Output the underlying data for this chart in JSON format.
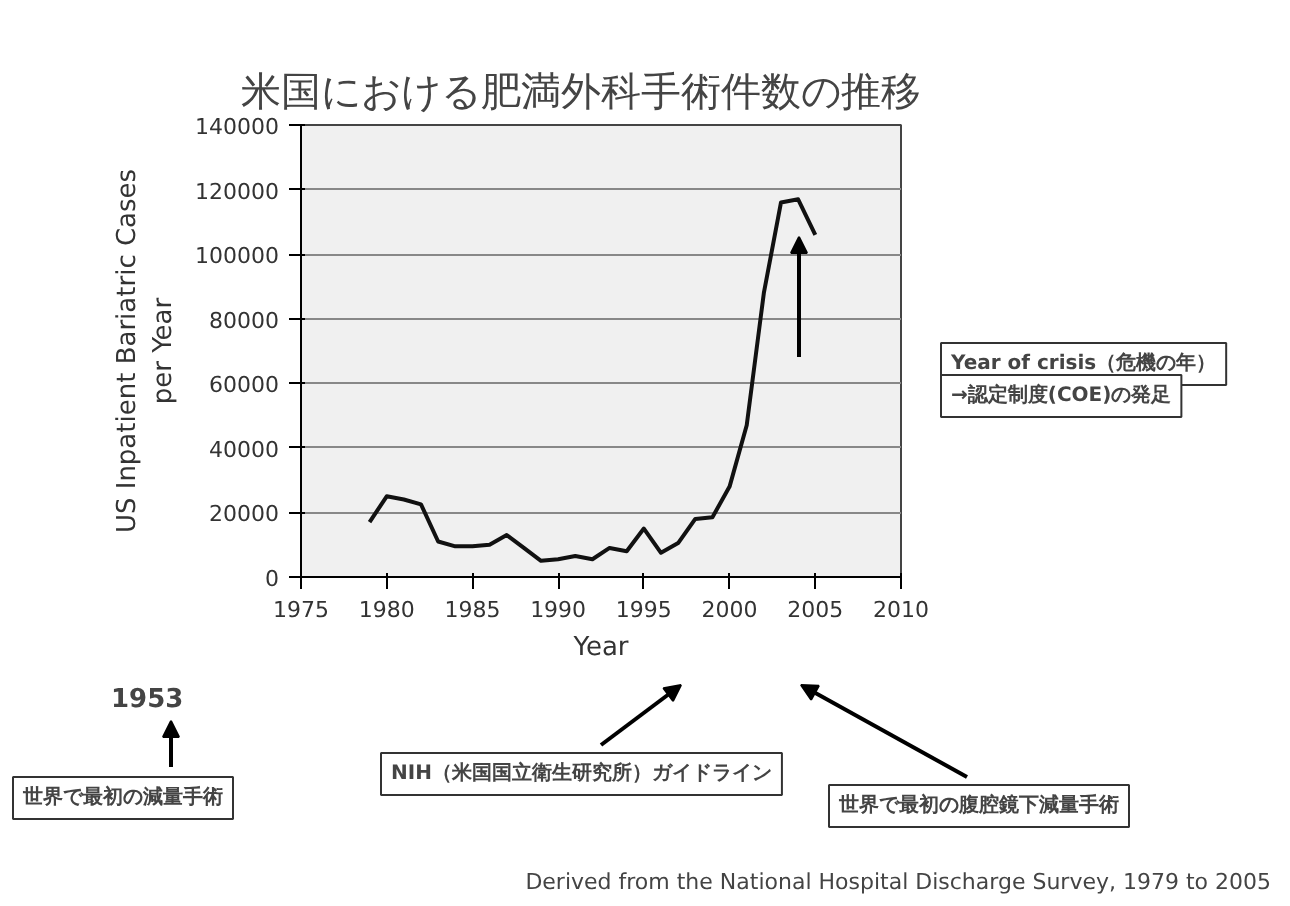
{
  "chart_data": {
    "type": "line",
    "title": "米国における肥満外科手術件数の推移",
    "xlabel": "Year",
    "ylabel": "US Inpatient Bariatric Cases\nper Year",
    "x": [
      1979,
      1980,
      1981,
      1982,
      1983,
      1984,
      1985,
      1986,
      1987,
      1988,
      1989,
      1990,
      1991,
      1992,
      1993,
      1994,
      1995,
      1996,
      1997,
      1998,
      1999,
      2000,
      2001,
      2002,
      2003,
      2004,
      2005
    ],
    "series": [
      {
        "color": "#111111",
        "values": [
          17000,
          25000,
          24000,
          22500,
          11000,
          9500,
          9500,
          10000,
          13000,
          9000,
          5000,
          5500,
          6500,
          5500,
          9000,
          8000,
          15000,
          7500,
          10500,
          18000,
          18500,
          28000,
          47000,
          88000,
          116000,
          117000,
          106000
        ]
      }
    ],
    "xlim": [
      1975,
      2010
    ],
    "xticks": [
      1975,
      1980,
      1985,
      1990,
      1995,
      2000,
      2005,
      2010
    ],
    "ylim": [
      0,
      140000
    ],
    "yticks": [
      0,
      20000,
      40000,
      60000,
      80000,
      100000,
      120000,
      140000
    ],
    "grid": "y",
    "marker": "none",
    "line_style": "solid",
    "annotations": [
      "Year of crisis（危機の年）",
      "→認定制度(COE)の発足",
      "1953",
      "世界で最初の減量手術",
      "NIH（米国国立衛生研究所）ガイドライン",
      "世界で最初の腹腔鏡下減量手術",
      "Derived from the National Hospital Discharge Survey, 1979 to 2005"
    ]
  }
}
